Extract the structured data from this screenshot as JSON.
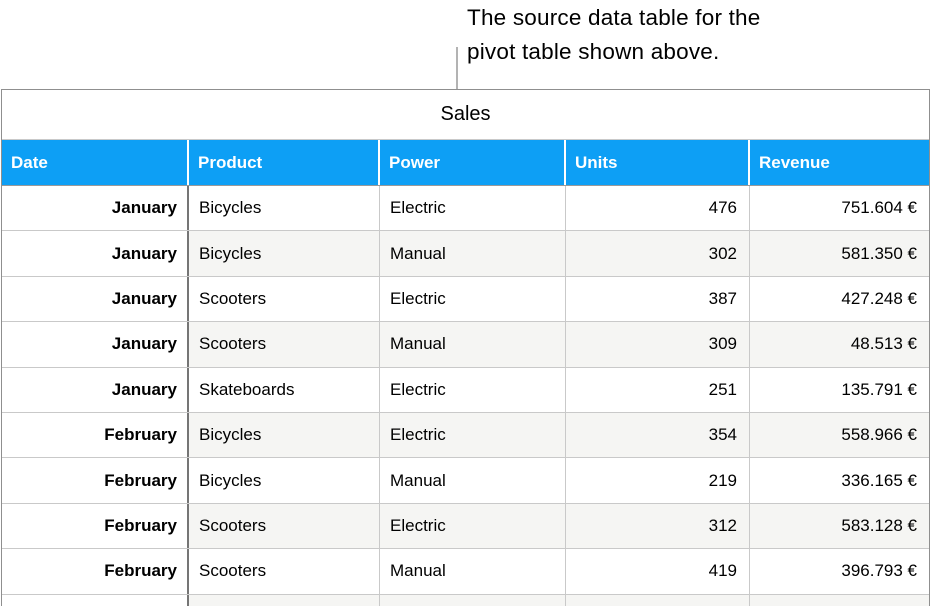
{
  "annotation": {
    "caption_line1": "The source data table for the",
    "caption_line2": "pivot table shown above."
  },
  "table": {
    "title": "Sales",
    "headers": [
      "Date",
      "Product",
      "Power",
      "Units",
      "Revenue"
    ],
    "rows": [
      {
        "date": "January",
        "product": "Bicycles",
        "power": "Electric",
        "units": "476",
        "revenue": "751.604 €"
      },
      {
        "date": "January",
        "product": "Bicycles",
        "power": "Manual",
        "units": "302",
        "revenue": "581.350 €"
      },
      {
        "date": "January",
        "product": "Scooters",
        "power": "Electric",
        "units": "387",
        "revenue": "427.248 €"
      },
      {
        "date": "January",
        "product": "Scooters",
        "power": "Manual",
        "units": "309",
        "revenue": "48.513 €"
      },
      {
        "date": "January",
        "product": "Skateboards",
        "power": "Electric",
        "units": "251",
        "revenue": "135.791 €"
      },
      {
        "date": "February",
        "product": "Bicycles",
        "power": "Electric",
        "units": "354",
        "revenue": "558.966 €"
      },
      {
        "date": "February",
        "product": "Bicycles",
        "power": "Manual",
        "units": "219",
        "revenue": "336.165 €"
      },
      {
        "date": "February",
        "product": "Scooters",
        "power": "Electric",
        "units": "312",
        "revenue": "583.128 €"
      },
      {
        "date": "February",
        "product": "Scooters",
        "power": "Manual",
        "units": "419",
        "revenue": "396.793 €"
      }
    ]
  },
  "colors": {
    "header_blue": "#0d9ff5",
    "alt_row_gray": "#f5f5f3",
    "callout_line": "#b3b3b3"
  }
}
